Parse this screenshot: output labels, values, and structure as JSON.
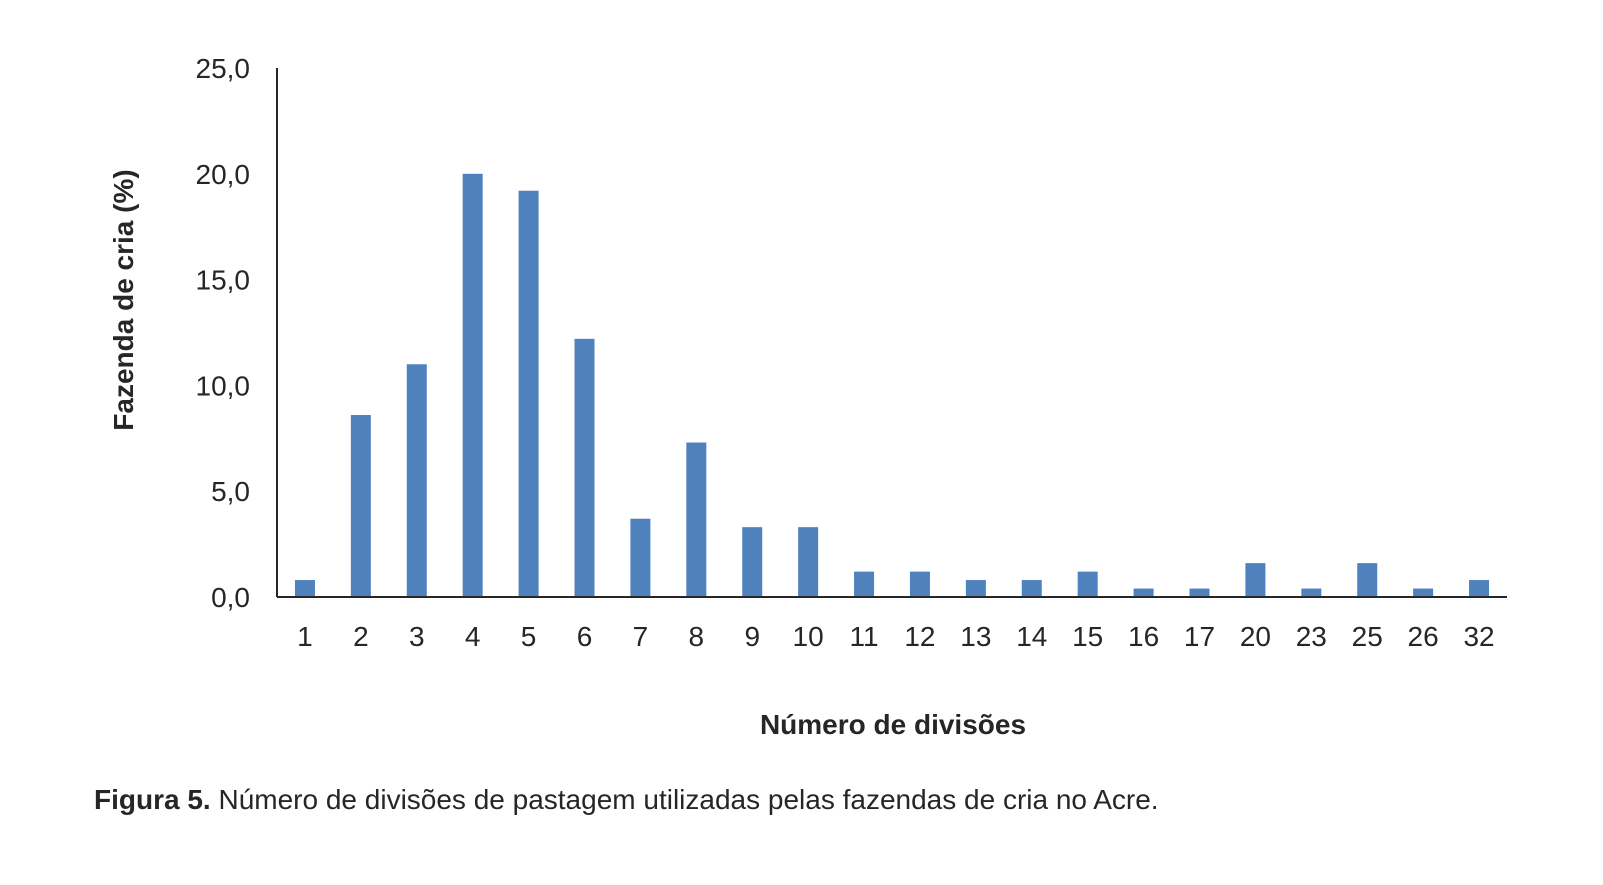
{
  "chart_data": {
    "type": "bar",
    "title": "",
    "xlabel": "Número de divisões",
    "ylabel": "Fazenda de cria (%)",
    "ylim": [
      0,
      25
    ],
    "yticks": [
      "0,0",
      "5,0",
      "10,0",
      "15,0",
      "20,0",
      "25,0"
    ],
    "grid": false,
    "legend": "none",
    "bar_color": "#4f81bd",
    "categories": [
      "1",
      "2",
      "3",
      "4",
      "5",
      "6",
      "7",
      "8",
      "9",
      "10",
      "11",
      "12",
      "13",
      "14",
      "15",
      "16",
      "17",
      "20",
      "23",
      "25",
      "26",
      "32"
    ],
    "values": [
      0.8,
      8.6,
      11.0,
      20.0,
      19.2,
      12.2,
      3.7,
      7.3,
      3.3,
      3.3,
      1.2,
      1.2,
      0.8,
      0.8,
      1.2,
      0.4,
      0.4,
      1.6,
      0.4,
      1.6,
      0.4,
      0.8
    ]
  },
  "caption": {
    "label": "Figura 5.",
    "text": " Número de divisões de pastagem utilizadas pelas fazendas de cria no Acre."
  }
}
